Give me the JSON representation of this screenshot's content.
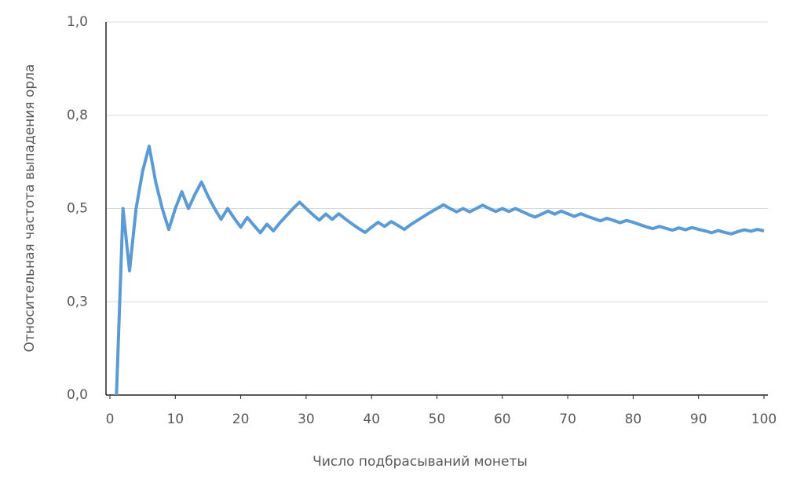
{
  "chart_data": {
    "type": "line",
    "x_label": "Число подбрасываний монеты",
    "y_label": "Относительная частота выпадения орла",
    "x": [
      1,
      2,
      3,
      4,
      5,
      6,
      7,
      8,
      9,
      10,
      11,
      12,
      13,
      14,
      15,
      16,
      17,
      18,
      19,
      20,
      21,
      22,
      23,
      24,
      25,
      26,
      27,
      28,
      29,
      30,
      31,
      32,
      33,
      34,
      35,
      36,
      37,
      38,
      39,
      40,
      41,
      42,
      43,
      44,
      45,
      46,
      47,
      48,
      49,
      50,
      51,
      52,
      53,
      54,
      55,
      56,
      57,
      58,
      59,
      60,
      61,
      62,
      63,
      64,
      65,
      66,
      67,
      68,
      69,
      70,
      71,
      72,
      73,
      74,
      75,
      76,
      77,
      78,
      79,
      80,
      81,
      82,
      83,
      84,
      85,
      86,
      87,
      88,
      89,
      90,
      91,
      92,
      93,
      94,
      95,
      96,
      97,
      98,
      99,
      100
    ],
    "series": [
      {
        "color": "#5b9bd5",
        "values": [
          0,
          0.5,
          0.333,
          0.5,
          0.6,
          0.667,
          0.571,
          0.5,
          0.444,
          0.5,
          0.545,
          0.5,
          0.538,
          0.571,
          0.533,
          0.5,
          0.471,
          0.5,
          0.474,
          0.45,
          0.476,
          0.455,
          0.435,
          0.458,
          0.44,
          0.462,
          0.481,
          0.5,
          0.517,
          0.5,
          0.484,
          0.469,
          0.485,
          0.471,
          0.486,
          0.472,
          0.459,
          0.447,
          0.436,
          0.45,
          0.463,
          0.452,
          0.465,
          0.455,
          0.444,
          0.457,
          0.468,
          0.479,
          0.49,
          0.5,
          0.51,
          0.5,
          0.491,
          0.5,
          0.491,
          0.5,
          0.509,
          0.5,
          0.492,
          0.5,
          0.492,
          0.5,
          0.492,
          0.484,
          0.477,
          0.485,
          0.493,
          0.485,
          0.493,
          0.486,
          0.479,
          0.486,
          0.479,
          0.473,
          0.467,
          0.474,
          0.468,
          0.462,
          0.468,
          0.463,
          0.457,
          0.451,
          0.446,
          0.452,
          0.447,
          0.442,
          0.448,
          0.443,
          0.449,
          0.444,
          0.44,
          0.435,
          0.441,
          0.436,
          0.432,
          0.438,
          0.443,
          0.439,
          0.444,
          0.44
        ]
      }
    ],
    "xlim": [
      0,
      100
    ],
    "xticks": [
      0,
      10,
      20,
      30,
      40,
      50,
      60,
      70,
      80,
      90,
      100
    ],
    "ylim": [
      0,
      1
    ],
    "yticks": [
      {
        "value": 0,
        "label": "0,0"
      },
      {
        "value": 0.25,
        "label": "0,3"
      },
      {
        "value": 0.5,
        "label": "0,5"
      },
      {
        "value": 0.75,
        "label": "0,8"
      },
      {
        "value": 1,
        "label": "1,0"
      }
    ],
    "grid": true
  }
}
